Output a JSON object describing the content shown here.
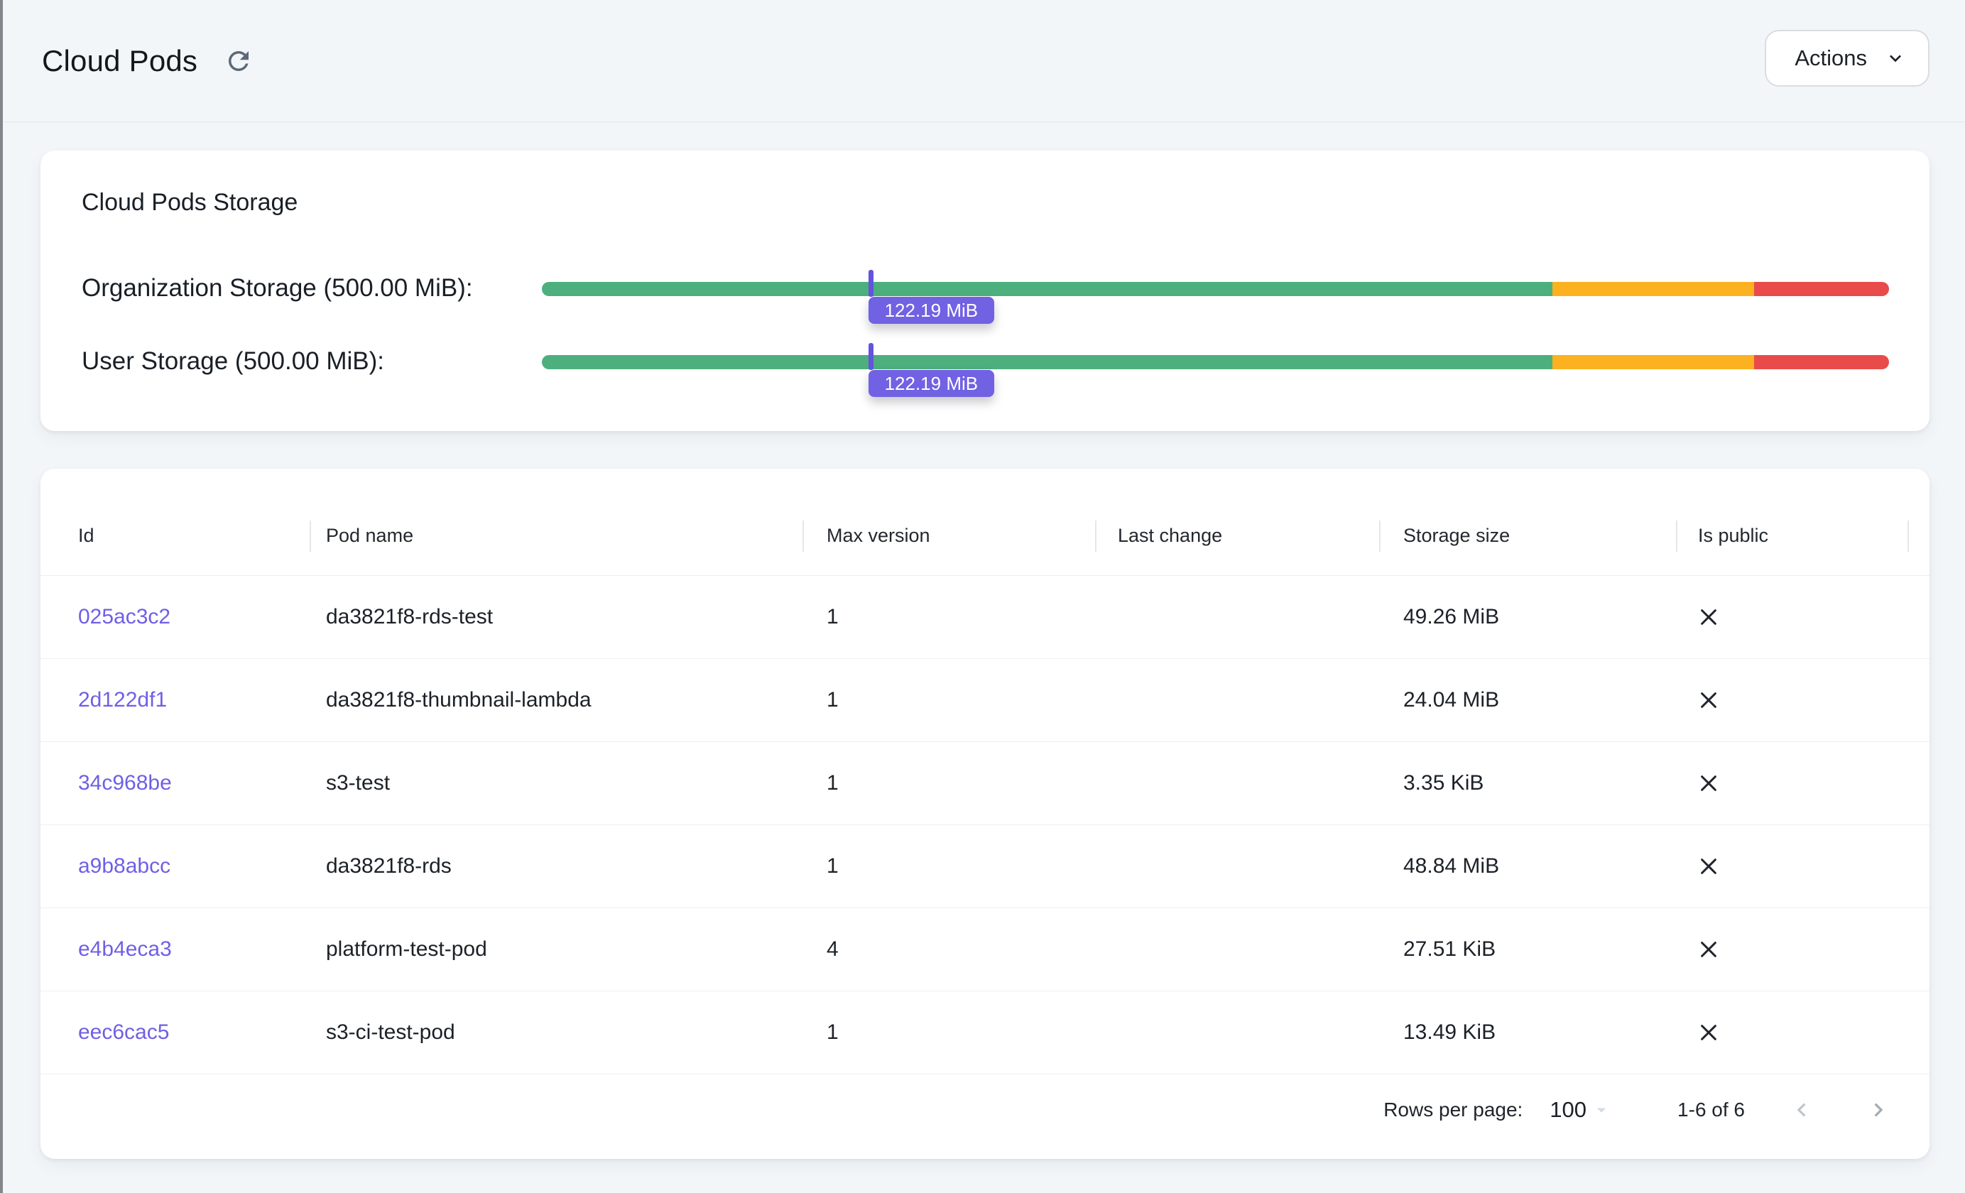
{
  "page": {
    "title": "Cloud Pods"
  },
  "header": {
    "actions_label": "Actions"
  },
  "theme": {
    "accent_purple": "#6f5fe6",
    "tooltip_bg": "#7161e3",
    "marker_purple": "#6353dd",
    "page_bg": "#f3f6f9"
  },
  "storage": {
    "card_title": "Cloud Pods Storage",
    "segments": {
      "green_pct": 75,
      "yellow_pct": 15,
      "red_pct": 10
    },
    "colors": {
      "green": "#4daf7d",
      "yellow": "#fbb120",
      "red": "#e94b4b"
    },
    "bars": [
      {
        "label": "Organization Storage (500.00 MiB):",
        "limit_mib": 500.0,
        "used_mib": 122.19,
        "tooltip": "122.19 MiB"
      },
      {
        "label": "User Storage (500.00 MiB):",
        "limit_mib": 500.0,
        "used_mib": 122.19,
        "tooltip": "122.19 MiB"
      }
    ]
  },
  "table": {
    "columns": [
      "Id",
      "Pod name",
      "Max version",
      "Last change",
      "Storage size",
      "Is public"
    ],
    "rows": [
      {
        "id": "025ac3c2",
        "pod_name": "da3821f8-rds-test",
        "max_version": "1",
        "last_change": "",
        "storage_size": "49.26 MiB",
        "is_public": false
      },
      {
        "id": "2d122df1",
        "pod_name": "da3821f8-thumbnail-lambda",
        "max_version": "1",
        "last_change": "",
        "storage_size": "24.04 MiB",
        "is_public": false
      },
      {
        "id": "34c968be",
        "pod_name": "s3-test",
        "max_version": "1",
        "last_change": "",
        "storage_size": "3.35 KiB",
        "is_public": false
      },
      {
        "id": "a9b8abcc",
        "pod_name": "da3821f8-rds",
        "max_version": "1",
        "last_change": "",
        "storage_size": "48.84 MiB",
        "is_public": false
      },
      {
        "id": "e4b4eca3",
        "pod_name": "platform-test-pod",
        "max_version": "4",
        "last_change": "",
        "storage_size": "27.51 KiB",
        "is_public": false
      },
      {
        "id": "eec6cac5",
        "pod_name": "s3-ci-test-pod",
        "max_version": "1",
        "last_change": "",
        "storage_size": "13.49 KiB",
        "is_public": false
      }
    ],
    "pagination": {
      "rows_per_page_label": "Rows per page:",
      "rows_per_page_value": "100",
      "range_label": "1-6 of 6"
    }
  }
}
